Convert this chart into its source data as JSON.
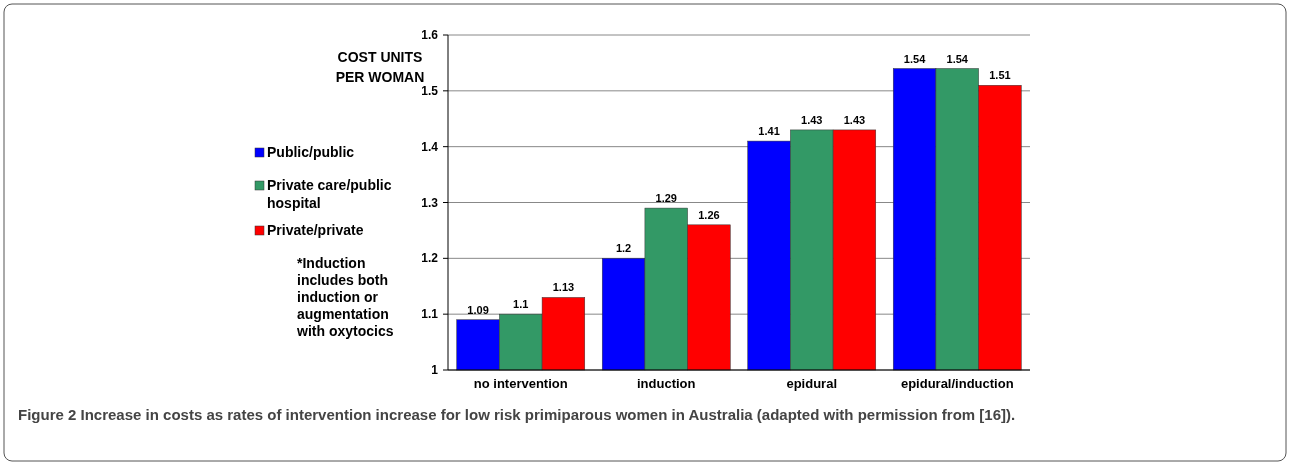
{
  "chart_data": {
    "type": "bar",
    "ylabel": "COST UNITS PER WOMAN",
    "categories": [
      "no intervention",
      "induction",
      "epidural",
      "epidural/induction"
    ],
    "series": [
      {
        "name": "Public/public",
        "color": "#0000ff",
        "values": [
          1.09,
          1.2,
          1.41,
          1.54
        ]
      },
      {
        "name": "Private care/public hospital",
        "color": "#339966",
        "values": [
          1.1,
          1.29,
          1.43,
          1.54
        ]
      },
      {
        "name": "Private/private",
        "color": "#ff0000",
        "values": [
          1.13,
          1.26,
          1.43,
          1.51
        ]
      }
    ],
    "ylim": [
      1,
      1.6
    ],
    "yticks": [
      1,
      1.1,
      1.2,
      1.3,
      1.4,
      1.5,
      1.6
    ],
    "grid": "y",
    "legend": "left",
    "data_labels": true,
    "annotations": [
      "*Induction includes both induction or augmentation with oxytocics",
      "Figure 2 Increase in costs as rates of intervention increase for low risk primiparous women in Australia (adapted with permission from [16])."
    ]
  }
}
